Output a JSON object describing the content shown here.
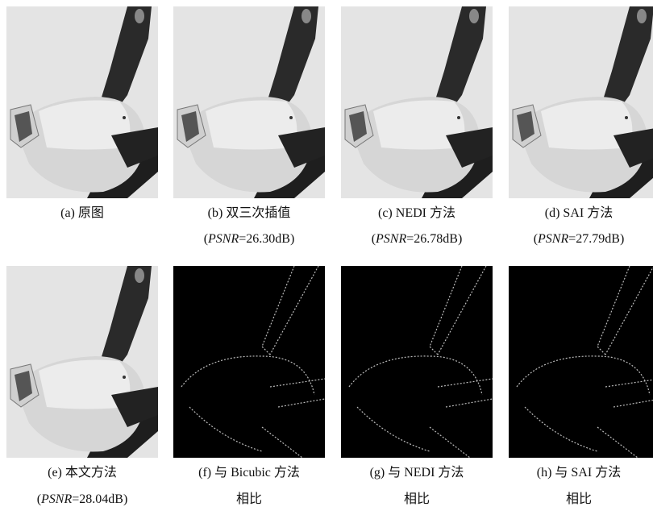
{
  "figures": [
    {
      "caption": "(a) 原图"
    },
    {
      "caption": "(b) 双三次插值",
      "psnr": [
        "(",
        "PSNR",
        "=26.30dB)"
      ]
    },
    {
      "caption": "(c) NEDI 方法",
      "psnr": [
        "(",
        "PSNR",
        "=26.78dB)"
      ]
    },
    {
      "caption": "(d) SAI 方法",
      "psnr": [
        "(",
        "PSNR",
        "=27.79dB)"
      ]
    },
    {
      "caption": "(e) 本文方法",
      "psnr": [
        "(",
        "PSNR",
        "=28.04dB)"
      ]
    },
    {
      "caption": "(f) 与 Bicubic 方法",
      "note": "相比"
    },
    {
      "caption": "(g) 与 NEDI 方法",
      "note": "相比"
    },
    {
      "caption": "(h) 与 SAI 方法",
      "note": "相比"
    }
  ]
}
